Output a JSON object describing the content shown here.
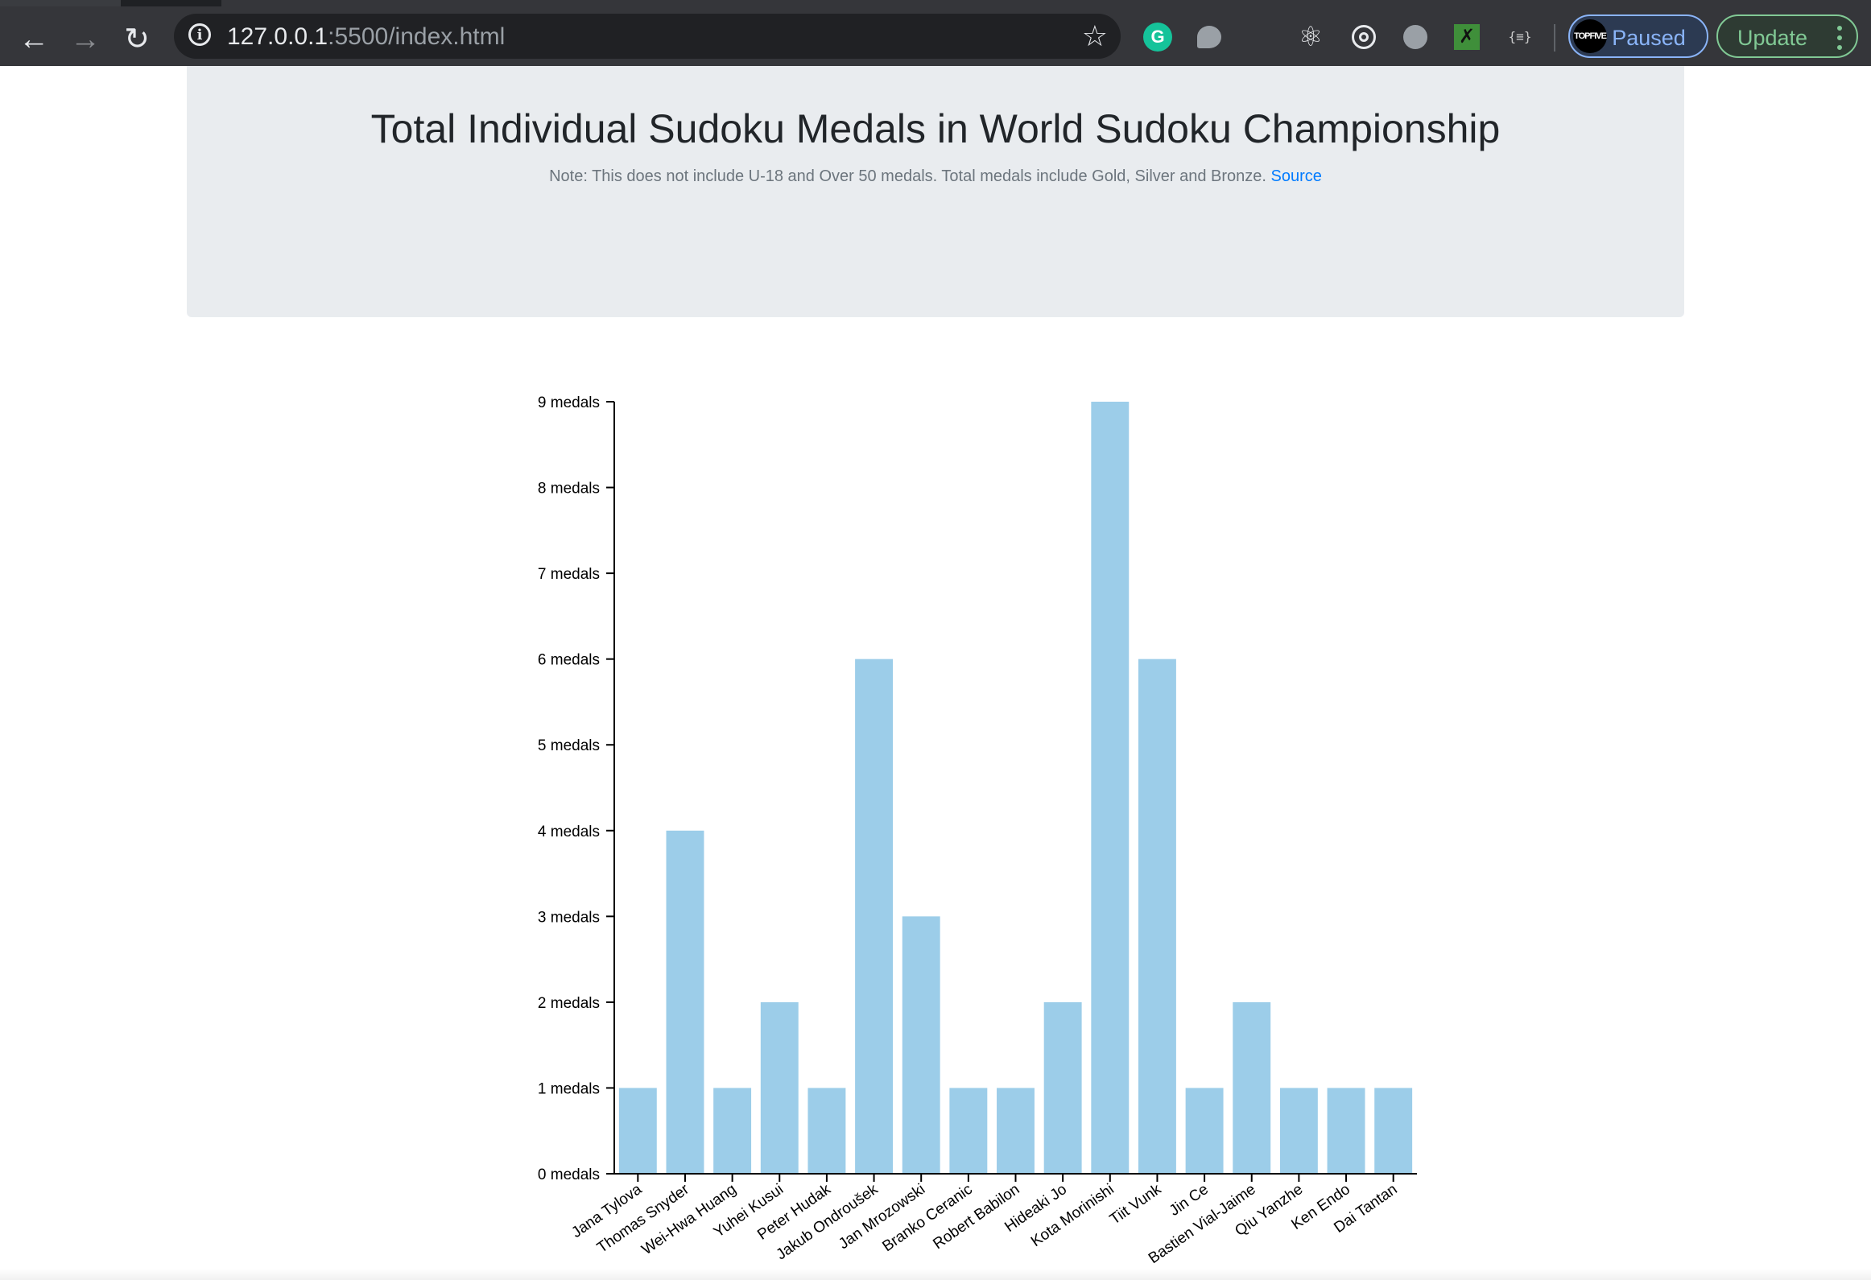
{
  "browser": {
    "url_host": "127.0.0.1",
    "url_rest": ":5500/index.html",
    "profile_status": "Paused",
    "profile_avatar_text": "TOPFIVE",
    "update_label": "Update",
    "ext_g_label": "G",
    "ext_json_label": "{≡}"
  },
  "header": {
    "title": "Total Individual Sudoku Medals in World Sudoku Championship",
    "note": "Note: This does not include U-18 and Over 50 medals. Total medals include Gold, Silver and Bronze. ",
    "source_link": "Source"
  },
  "colors": {
    "bar": "#9ccde9",
    "axis": "#000000"
  },
  "chart_data": {
    "type": "bar",
    "title": "",
    "xlabel": "",
    "ylabel": "",
    "ylim": [
      0,
      9
    ],
    "yticks": [
      0,
      1,
      2,
      3,
      4,
      5,
      6,
      7,
      8,
      9
    ],
    "ytick_suffix": " medals",
    "categories": [
      "Jana Tylova",
      "Thomas Snyder",
      "Wei-Hwa Huang",
      "Yuhei Kusui",
      "Peter Hudak",
      "Jakub Ondroušek",
      "Jan Mrozowski",
      "Branko Ceranic",
      "Robert Babilon",
      "Hideaki Jo",
      "Kota Morinishi",
      "Tiit Vunk",
      "Jin Ce",
      "Bastien Vial-Jaime",
      "Qiu Yanzhe",
      "Ken Endo",
      "Dai Tantan"
    ],
    "values": [
      1,
      4,
      1,
      2,
      1,
      6,
      3,
      1,
      1,
      2,
      9,
      6,
      1,
      2,
      1,
      1,
      1
    ]
  }
}
